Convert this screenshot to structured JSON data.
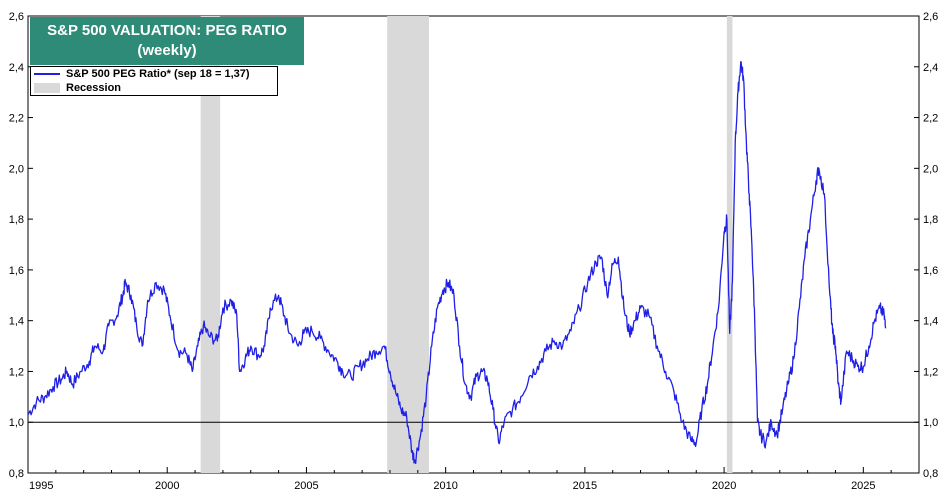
{
  "chart_data": {
    "type": "line",
    "title": "S&P 500 VALUATION: PEG RATIO",
    "subtitle": "(weekly)",
    "xlabel": "",
    "ylabel": "",
    "xlim": [
      1995.0,
      2027.0
    ],
    "ylim": [
      0.8,
      2.6
    ],
    "y_ticks": [
      "0,8",
      "1,0",
      "1,2",
      "1,4",
      "1,6",
      "1,8",
      "2,0",
      "2,2",
      "2,4",
      "2,6"
    ],
    "x_ticks": [
      "1995",
      "2000",
      "2005",
      "2010",
      "2015",
      "2020",
      "2025"
    ],
    "reference_line": 1.0,
    "legend_position": "top-left",
    "series": [
      {
        "name": "S&P 500 PEG Ratio* (sep 18 = 1,37)",
        "color": "#1f1fe6",
        "points": [
          [
            1995.0,
            1.03
          ],
          [
            1995.3,
            1.08
          ],
          [
            1995.6,
            1.1
          ],
          [
            1995.9,
            1.14
          ],
          [
            1996.2,
            1.17
          ],
          [
            1996.4,
            1.2
          ],
          [
            1996.6,
            1.15
          ],
          [
            1996.9,
            1.2
          ],
          [
            1997.2,
            1.24
          ],
          [
            1997.4,
            1.3
          ],
          [
            1997.7,
            1.28
          ],
          [
            1997.9,
            1.38
          ],
          [
            1998.2,
            1.42
          ],
          [
            1998.4,
            1.5
          ],
          [
            1998.5,
            1.55
          ],
          [
            1998.7,
            1.5
          ],
          [
            1998.9,
            1.38
          ],
          [
            1999.1,
            1.3
          ],
          [
            1999.3,
            1.48
          ],
          [
            1999.6,
            1.55
          ],
          [
            1999.9,
            1.52
          ],
          [
            2000.1,
            1.42
          ],
          [
            2000.4,
            1.28
          ],
          [
            2000.7,
            1.27
          ],
          [
            2000.9,
            1.2
          ],
          [
            2001.1,
            1.3
          ],
          [
            2001.3,
            1.38
          ],
          [
            2001.5,
            1.34
          ],
          [
            2001.8,
            1.32
          ],
          [
            2002.0,
            1.45
          ],
          [
            2002.3,
            1.48
          ],
          [
            2002.5,
            1.42
          ],
          [
            2002.6,
            1.2
          ],
          [
            2002.8,
            1.25
          ],
          [
            2003.0,
            1.3
          ],
          [
            2003.3,
            1.26
          ],
          [
            2003.5,
            1.3
          ],
          [
            2003.7,
            1.45
          ],
          [
            2004.0,
            1.5
          ],
          [
            2004.2,
            1.42
          ],
          [
            2004.4,
            1.35
          ],
          [
            2004.7,
            1.3
          ],
          [
            2004.9,
            1.35
          ],
          [
            2005.2,
            1.36
          ],
          [
            2005.5,
            1.33
          ],
          [
            2005.8,
            1.28
          ],
          [
            2006.1,
            1.24
          ],
          [
            2006.3,
            1.2
          ],
          [
            2006.6,
            1.18
          ],
          [
            2006.9,
            1.22
          ],
          [
            2007.2,
            1.25
          ],
          [
            2007.5,
            1.28
          ],
          [
            2007.8,
            1.3
          ],
          [
            2008.0,
            1.2
          ],
          [
            2008.2,
            1.12
          ],
          [
            2008.4,
            1.05
          ],
          [
            2008.6,
            1.02
          ],
          [
            2008.8,
            0.88
          ],
          [
            2008.9,
            0.85
          ],
          [
            2009.1,
            0.95
          ],
          [
            2009.3,
            1.1
          ],
          [
            2009.5,
            1.3
          ],
          [
            2009.7,
            1.45
          ],
          [
            2009.9,
            1.52
          ],
          [
            2010.1,
            1.55
          ],
          [
            2010.3,
            1.5
          ],
          [
            2010.5,
            1.3
          ],
          [
            2010.7,
            1.15
          ],
          [
            2010.9,
            1.1
          ],
          [
            2011.1,
            1.18
          ],
          [
            2011.3,
            1.2
          ],
          [
            2011.5,
            1.17
          ],
          [
            2011.7,
            1.05
          ],
          [
            2011.9,
            0.92
          ],
          [
            2012.1,
            1.0
          ],
          [
            2012.4,
            1.05
          ],
          [
            2012.7,
            1.1
          ],
          [
            2013.0,
            1.18
          ],
          [
            2013.3,
            1.22
          ],
          [
            2013.6,
            1.28
          ],
          [
            2013.9,
            1.32
          ],
          [
            2014.2,
            1.3
          ],
          [
            2014.5,
            1.36
          ],
          [
            2014.8,
            1.45
          ],
          [
            2015.1,
            1.55
          ],
          [
            2015.4,
            1.63
          ],
          [
            2015.6,
            1.65
          ],
          [
            2015.8,
            1.5
          ],
          [
            2016.0,
            1.62
          ],
          [
            2016.2,
            1.65
          ],
          [
            2016.4,
            1.45
          ],
          [
            2016.6,
            1.35
          ],
          [
            2016.8,
            1.4
          ],
          [
            2017.0,
            1.45
          ],
          [
            2017.3,
            1.42
          ],
          [
            2017.6,
            1.3
          ],
          [
            2017.9,
            1.2
          ],
          [
            2018.2,
            1.12
          ],
          [
            2018.5,
            1.0
          ],
          [
            2018.8,
            0.93
          ],
          [
            2019.0,
            0.92
          ],
          [
            2019.2,
            1.05
          ],
          [
            2019.4,
            1.15
          ],
          [
            2019.6,
            1.3
          ],
          [
            2019.8,
            1.45
          ],
          [
            2020.0,
            1.75
          ],
          [
            2020.1,
            1.8
          ],
          [
            2020.2,
            1.35
          ],
          [
            2020.3,
            1.55
          ],
          [
            2020.4,
            2.1
          ],
          [
            2020.5,
            2.3
          ],
          [
            2020.6,
            2.42
          ],
          [
            2020.7,
            2.35
          ],
          [
            2020.8,
            2.1
          ],
          [
            2020.9,
            1.9
          ],
          [
            2021.0,
            1.7
          ],
          [
            2021.1,
            1.4
          ],
          [
            2021.2,
            1.0
          ],
          [
            2021.3,
            0.95
          ],
          [
            2021.5,
            0.92
          ],
          [
            2021.7,
            1.0
          ],
          [
            2021.9,
            0.95
          ],
          [
            2022.1,
            1.05
          ],
          [
            2022.3,
            1.15
          ],
          [
            2022.5,
            1.25
          ],
          [
            2022.7,
            1.45
          ],
          [
            2022.9,
            1.65
          ],
          [
            2023.1,
            1.8
          ],
          [
            2023.3,
            1.95
          ],
          [
            2023.4,
            2.0
          ],
          [
            2023.6,
            1.9
          ],
          [
            2023.8,
            1.5
          ],
          [
            2023.9,
            1.35
          ],
          [
            2024.0,
            1.3
          ],
          [
            2024.1,
            1.15
          ],
          [
            2024.2,
            1.08
          ],
          [
            2024.4,
            1.28
          ],
          [
            2024.6,
            1.25
          ],
          [
            2024.8,
            1.22
          ],
          [
            2025.0,
            1.22
          ],
          [
            2025.2,
            1.3
          ],
          [
            2025.4,
            1.4
          ],
          [
            2025.6,
            1.45
          ],
          [
            2025.75,
            1.42
          ],
          [
            2025.8,
            1.37
          ]
        ]
      },
      {
        "name": "Recession",
        "color": "#d9d9d9",
        "periods": [
          [
            2001.2,
            2001.9
          ],
          [
            2007.9,
            2009.4
          ],
          [
            2020.1,
            2020.3
          ]
        ]
      }
    ]
  },
  "title_box": {
    "title": "S&P 500 VALUATION: PEG RATIO",
    "subtitle": "(weekly)",
    "background": "#2e8b78"
  },
  "legend": {
    "line_label": "S&P 500 PEG Ratio* (sep 18 = 1,37)",
    "shade_label": "Recession"
  }
}
